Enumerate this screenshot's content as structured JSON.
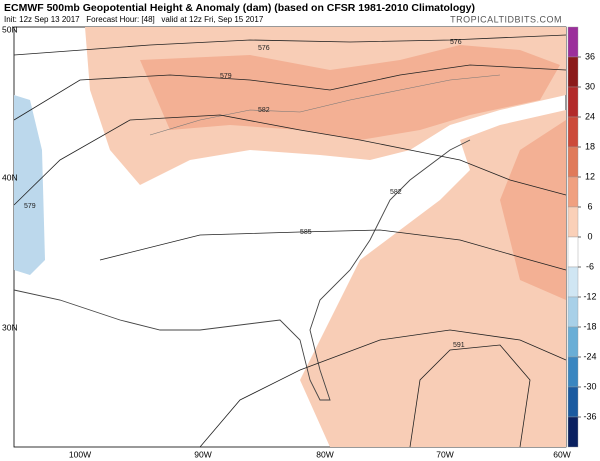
{
  "header": {
    "title": "ECMWF 500mb Geopotential Height & Anomaly (dam) (based on CFSR 1981-2010 Climatology)",
    "subtitle": "Init: 12z Sep 13 2017   Forecast Hour: [48]   valid at 12z Fri, Sep 15 2017",
    "credit": "TROPICALTIDBITS.COM"
  },
  "map": {
    "latitude_labels": [
      "50N",
      "40N",
      "30N"
    ],
    "longitude_labels": [
      "100W",
      "90W",
      "80W",
      "70W",
      "60W"
    ],
    "contour_labels": [
      "576",
      "579",
      "582",
      "585",
      "591",
      "579",
      "576",
      "582"
    ]
  },
  "colorbar": {
    "ticks": [
      36,
      30,
      24,
      18,
      12,
      6,
      0,
      -6,
      -12,
      -18,
      -24,
      -30,
      -36
    ],
    "colors": [
      "#9b2f9b",
      "#8b1a1a",
      "#b22a2a",
      "#cc4a3a",
      "#e07a5a",
      "#f0a080",
      "#fad0b8",
      "#ffffff",
      "#d0e6f3",
      "#a8d0e8",
      "#6aaed6",
      "#3a86c0",
      "#1a5aa0",
      "#0a2060"
    ]
  }
}
